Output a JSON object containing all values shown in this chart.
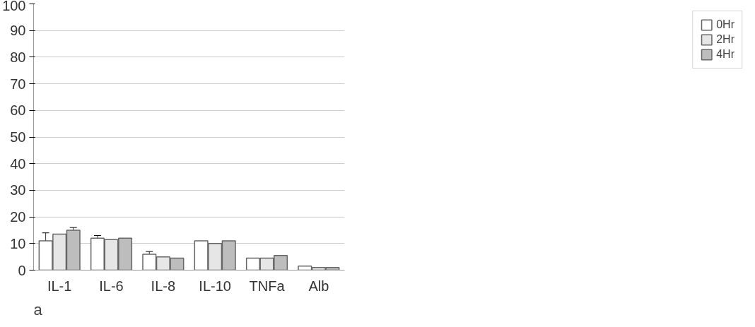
{
  "chart_data": {
    "type": "bar",
    "categories": [
      "IL-1",
      "IL-6",
      "IL-8",
      "IL-10",
      "TNFa",
      "Alb"
    ],
    "series": [
      {
        "name": "0Hr",
        "color": "#ffffff",
        "values": [
          11,
          12,
          6,
          11,
          4.5,
          1.5
        ],
        "errors": [
          3,
          1,
          1,
          null,
          null,
          null
        ]
      },
      {
        "name": "2Hr",
        "color": "#e6e6e6",
        "values": [
          13.5,
          11.5,
          5,
          10,
          4.5,
          1
        ]
      },
      {
        "name": "4Hr",
        "color": "#bdbdbd",
        "values": [
          15,
          12,
          4.5,
          11,
          5.5,
          1
        ],
        "errors": [
          1,
          null,
          null,
          null,
          null,
          null
        ]
      }
    ],
    "ylim": [
      0,
      100
    ],
    "yticks": [
      0,
      10,
      20,
      30,
      40,
      50,
      60,
      70,
      80,
      90,
      100
    ],
    "grid": "y",
    "legend": "right",
    "annotations": [
      "a"
    ]
  }
}
